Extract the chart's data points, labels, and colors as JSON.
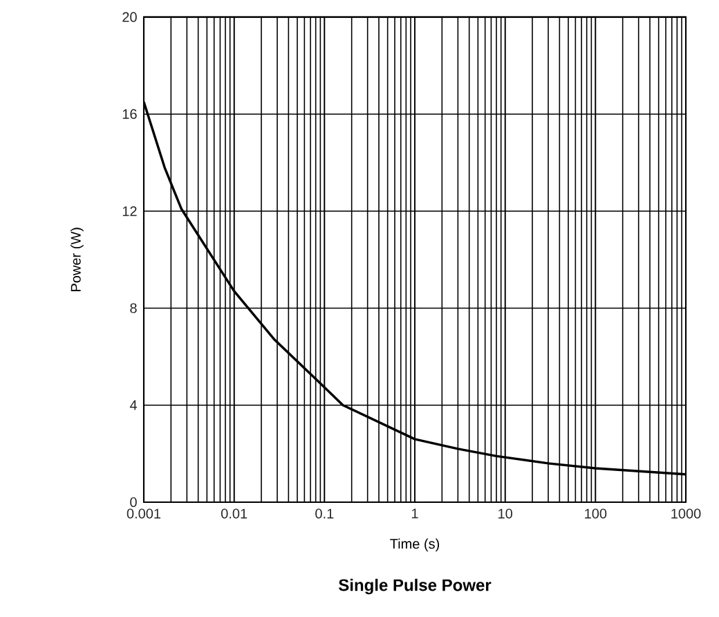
{
  "chart_data": {
    "type": "line",
    "title": "Single Pulse Power",
    "xlabel": "Time (s)",
    "ylabel": "Power (W)",
    "x": [
      0.001,
      0.0017,
      0.0026,
      0.01,
      0.028,
      0.09,
      0.16,
      1,
      3,
      8,
      30,
      100,
      1000
    ],
    "series": [
      {
        "color": "#000000",
        "values": [
          16.5,
          13.8,
          12.1,
          8.7,
          6.7,
          4.9,
          4.0,
          2.6,
          2.2,
          1.9,
          1.6,
          1.4,
          1.15
        ]
      }
    ],
    "log": "x",
    "xlim": [
      0.001,
      1000
    ],
    "xticks": [
      0.001,
      0.01,
      0.1,
      1,
      10,
      100,
      1000
    ],
    "ylim": [
      0,
      20
    ],
    "yticks": [
      0,
      4,
      8,
      12,
      16,
      20
    ],
    "grid": true
  }
}
